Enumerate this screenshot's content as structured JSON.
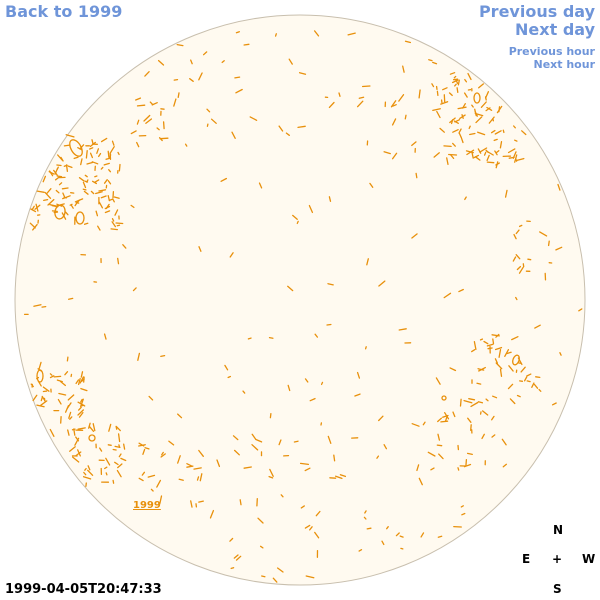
{
  "nav": {
    "back": "Back to 1999",
    "prev_day": "Previous day",
    "next_day": "Next day",
    "prev_hour": "Previous hour",
    "next_hour": "Next hour"
  },
  "disk": {
    "year_label": "1999",
    "fill_color": "#fffaf0",
    "rim_color": "#c8bfae",
    "contour_color": "#e8900b"
  },
  "compass": {
    "north": "N",
    "east": "E",
    "center": "+",
    "west": "W",
    "south": "S"
  },
  "timestamp": "1999-04-05T20:47:33"
}
